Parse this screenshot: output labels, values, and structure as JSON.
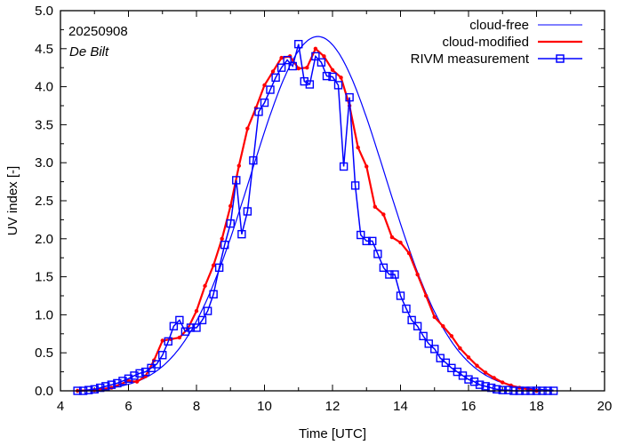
{
  "chart_data": {
    "type": "line",
    "xlabel": "Time  [UTC]",
    "ylabel": "UV index  [-]",
    "xlim": [
      4,
      20
    ],
    "ylim": [
      0,
      5
    ],
    "xticks": [
      4,
      6,
      8,
      10,
      12,
      14,
      16,
      18,
      20
    ],
    "xtick_labels": [
      "4",
      "6",
      "8",
      "10",
      "12",
      "14",
      "16",
      "18",
      "20"
    ],
    "yticks": [
      0,
      0.5,
      1,
      1.5,
      2,
      2.5,
      3,
      3.5,
      4,
      4.5,
      5
    ],
    "ytick_labels": [
      "0.0",
      "0.5",
      "1.0",
      "1.5",
      "2.0",
      "2.5",
      "3.0",
      "3.5",
      "4.0",
      "4.5",
      "5.0"
    ],
    "annotations": {
      "date": "20250908",
      "station": "De Bilt"
    },
    "legend_position": "top-right",
    "grid": false,
    "colors": {
      "cloud_free": "#0000ff",
      "cloud_modified": "#ff0000",
      "measurement": "#0000ff"
    },
    "series": [
      {
        "name": "cloud-free",
        "style": "line",
        "model": {
          "peak_time": 11.57,
          "peak_value": 4.66,
          "sigma": 2.05
        },
        "x_range": [
          4.5,
          18.5
        ]
      },
      {
        "name": "cloud-modified",
        "style": "line-points",
        "x": [
          4.5,
          5.0,
          5.5,
          6.0,
          6.25,
          6.5,
          6.75,
          7.0,
          7.25,
          7.5,
          7.75,
          8.0,
          8.25,
          8.5,
          8.75,
          9.0,
          9.25,
          9.5,
          9.75,
          10.0,
          10.25,
          10.5,
          10.75,
          11.0,
          11.25,
          11.5,
          11.75,
          12.0,
          12.25,
          12.5,
          12.75,
          13.0,
          13.25,
          13.5,
          13.75,
          14.0,
          14.25,
          14.5,
          14.75,
          15.0,
          15.25,
          15.5,
          15.75,
          16.0,
          16.25,
          16.5,
          16.75,
          17.0,
          17.25,
          17.5,
          17.75,
          18.0
        ],
        "y": [
          0.0,
          0.01,
          0.04,
          0.13,
          0.12,
          0.19,
          0.4,
          0.66,
          0.68,
          0.7,
          0.82,
          1.05,
          1.38,
          1.65,
          2.0,
          2.43,
          2.96,
          3.45,
          3.72,
          4.02,
          4.2,
          4.38,
          4.4,
          4.24,
          4.25,
          4.5,
          4.4,
          4.22,
          4.12,
          3.75,
          3.2,
          2.95,
          2.42,
          2.32,
          2.02,
          1.95,
          1.81,
          1.53,
          1.25,
          0.97,
          0.85,
          0.72,
          0.56,
          0.44,
          0.33,
          0.24,
          0.17,
          0.11,
          0.07,
          0.04,
          0.02,
          0.0
        ]
      },
      {
        "name": "RIVM measurement",
        "style": "line-squares",
        "x": [
          4.5,
          4.67,
          4.83,
          5.0,
          5.17,
          5.33,
          5.5,
          5.67,
          5.83,
          6.0,
          6.17,
          6.33,
          6.5,
          6.67,
          6.83,
          7.0,
          7.17,
          7.33,
          7.5,
          7.67,
          7.83,
          8.0,
          8.17,
          8.33,
          8.5,
          8.67,
          8.83,
          9.0,
          9.17,
          9.33,
          9.5,
          9.67,
          9.83,
          10.0,
          10.17,
          10.33,
          10.5,
          10.67,
          10.83,
          11.0,
          11.17,
          11.33,
          11.5,
          11.67,
          11.83,
          12.0,
          12.17,
          12.33,
          12.5,
          12.67,
          12.83,
          13.0,
          13.17,
          13.33,
          13.5,
          13.67,
          13.83,
          14.0,
          14.17,
          14.33,
          14.5,
          14.67,
          14.83,
          15.0,
          15.17,
          15.33,
          15.5,
          15.67,
          15.83,
          16.0,
          16.17,
          16.33,
          16.5,
          16.67,
          16.83,
          17.0,
          17.17,
          17.33,
          17.5,
          17.67,
          17.83,
          18.0,
          18.17,
          18.33,
          18.5
        ],
        "y": [
          0.0,
          0.0,
          0.01,
          0.02,
          0.04,
          0.06,
          0.08,
          0.1,
          0.13,
          0.16,
          0.2,
          0.23,
          0.25,
          0.3,
          0.35,
          0.47,
          0.65,
          0.85,
          0.93,
          0.78,
          0.83,
          0.83,
          0.93,
          1.05,
          1.27,
          1.62,
          1.92,
          2.2,
          2.77,
          2.06,
          2.36,
          3.03,
          3.67,
          3.79,
          3.96,
          4.12,
          4.25,
          4.35,
          4.27,
          4.56,
          4.07,
          4.03,
          4.4,
          4.32,
          4.14,
          4.13,
          4.02,
          2.95,
          3.86,
          2.7,
          2.05,
          1.97,
          1.97,
          1.8,
          1.62,
          1.53,
          1.53,
          1.25,
          1.08,
          0.93,
          0.85,
          0.72,
          0.62,
          0.55,
          0.43,
          0.37,
          0.3,
          0.25,
          0.2,
          0.15,
          0.12,
          0.08,
          0.06,
          0.04,
          0.02,
          0.01,
          0.01,
          0.0,
          0.0,
          0.0,
          0.0,
          0.0,
          0.0,
          0.0,
          0.0
        ]
      }
    ]
  }
}
